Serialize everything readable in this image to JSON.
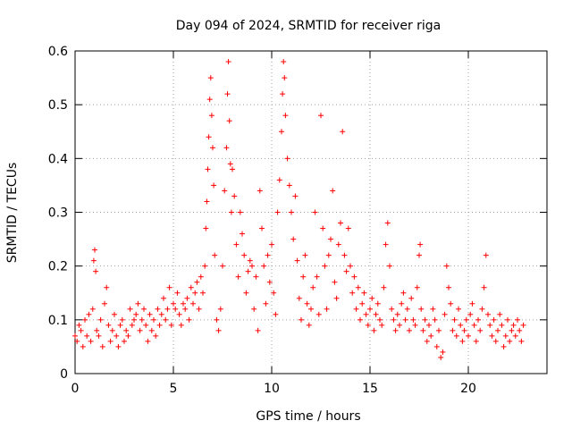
{
  "chart_data": {
    "type": "scatter",
    "title": "Day 094 of 2024, SRMTID for receiver riga",
    "xlabel": "GPS time / hours",
    "ylabel": "SRMTID / TECUs",
    "xlim": [
      0,
      24
    ],
    "ylim": [
      0,
      0.6
    ],
    "x_ticks": [
      0,
      5,
      10,
      15,
      20
    ],
    "x_tick_labels": [
      "0",
      "5",
      "10",
      "15",
      "20"
    ],
    "y_ticks": [
      0,
      0.1,
      0.2,
      0.3,
      0.4,
      0.5,
      0.6
    ],
    "y_tick_labels": [
      "0",
      "0.1",
      "0.2",
      "0.3",
      "0.4",
      "0.5",
      "0.6"
    ],
    "grid": true,
    "marker": "+",
    "series": [
      {
        "name": "SRMTID",
        "color": "#ff0000",
        "points": [
          [
            0.0,
            0.07
          ],
          [
            0.1,
            0.06
          ],
          [
            0.2,
            0.09
          ],
          [
            0.3,
            0.08
          ],
          [
            0.4,
            0.05
          ],
          [
            0.5,
            0.1
          ],
          [
            0.6,
            0.07
          ],
          [
            0.7,
            0.11
          ],
          [
            0.8,
            0.06
          ],
          [
            0.9,
            0.12
          ],
          [
            0.95,
            0.21
          ],
          [
            1.0,
            0.23
          ],
          [
            1.05,
            0.19
          ],
          [
            1.1,
            0.08
          ],
          [
            1.2,
            0.07
          ],
          [
            1.3,
            0.1
          ],
          [
            1.4,
            0.05
          ],
          [
            1.5,
            0.13
          ],
          [
            1.6,
            0.16
          ],
          [
            1.7,
            0.09
          ],
          [
            1.8,
            0.06
          ],
          [
            1.9,
            0.08
          ],
          [
            2.0,
            0.11
          ],
          [
            2.1,
            0.07
          ],
          [
            2.2,
            0.05
          ],
          [
            2.3,
            0.09
          ],
          [
            2.4,
            0.1
          ],
          [
            2.5,
            0.06
          ],
          [
            2.6,
            0.08
          ],
          [
            2.7,
            0.07
          ],
          [
            2.8,
            0.12
          ],
          [
            2.9,
            0.09
          ],
          [
            3.0,
            0.1
          ],
          [
            3.1,
            0.11
          ],
          [
            3.2,
            0.13
          ],
          [
            3.3,
            0.08
          ],
          [
            3.4,
            0.1
          ],
          [
            3.5,
            0.12
          ],
          [
            3.6,
            0.09
          ],
          [
            3.7,
            0.06
          ],
          [
            3.8,
            0.11
          ],
          [
            3.9,
            0.08
          ],
          [
            4.0,
            0.1
          ],
          [
            4.1,
            0.07
          ],
          [
            4.2,
            0.12
          ],
          [
            4.3,
            0.09
          ],
          [
            4.4,
            0.11
          ],
          [
            4.5,
            0.14
          ],
          [
            4.6,
            0.1
          ],
          [
            4.7,
            0.12
          ],
          [
            4.8,
            0.16
          ],
          [
            4.9,
            0.09
          ],
          [
            5.0,
            0.13
          ],
          [
            5.1,
            0.12
          ],
          [
            5.2,
            0.15
          ],
          [
            5.3,
            0.11
          ],
          [
            5.4,
            0.09
          ],
          [
            5.5,
            0.13
          ],
          [
            5.6,
            0.12
          ],
          [
            5.7,
            0.14
          ],
          [
            5.8,
            0.1
          ],
          [
            5.9,
            0.16
          ],
          [
            6.0,
            0.13
          ],
          [
            6.1,
            0.15
          ],
          [
            6.2,
            0.17
          ],
          [
            6.3,
            0.12
          ],
          [
            6.4,
            0.18
          ],
          [
            6.5,
            0.15
          ],
          [
            6.6,
            0.2
          ],
          [
            6.65,
            0.27
          ],
          [
            6.7,
            0.32
          ],
          [
            6.75,
            0.38
          ],
          [
            6.8,
            0.44
          ],
          [
            6.85,
            0.51
          ],
          [
            6.9,
            0.55
          ],
          [
            6.95,
            0.48
          ],
          [
            7.0,
            0.42
          ],
          [
            7.05,
            0.35
          ],
          [
            7.1,
            0.22
          ],
          [
            7.2,
            0.1
          ],
          [
            7.3,
            0.08
          ],
          [
            7.4,
            0.12
          ],
          [
            7.5,
            0.2
          ],
          [
            7.6,
            0.34
          ],
          [
            7.7,
            0.42
          ],
          [
            7.75,
            0.52
          ],
          [
            7.8,
            0.58
          ],
          [
            7.85,
            0.47
          ],
          [
            7.9,
            0.39
          ],
          [
            7.95,
            0.3
          ],
          [
            8.0,
            0.38
          ],
          [
            8.1,
            0.33
          ],
          [
            8.2,
            0.24
          ],
          [
            8.3,
            0.18
          ],
          [
            8.4,
            0.3
          ],
          [
            8.5,
            0.26
          ],
          [
            8.6,
            0.22
          ],
          [
            8.7,
            0.15
          ],
          [
            8.8,
            0.19
          ],
          [
            8.9,
            0.21
          ],
          [
            9.0,
            0.2
          ],
          [
            9.1,
            0.12
          ],
          [
            9.2,
            0.18
          ],
          [
            9.3,
            0.08
          ],
          [
            9.4,
            0.34
          ],
          [
            9.5,
            0.27
          ],
          [
            9.6,
            0.2
          ],
          [
            9.7,
            0.13
          ],
          [
            9.8,
            0.22
          ],
          [
            9.9,
            0.17
          ],
          [
            10.0,
            0.24
          ],
          [
            10.1,
            0.15
          ],
          [
            10.2,
            0.11
          ],
          [
            10.3,
            0.3
          ],
          [
            10.4,
            0.36
          ],
          [
            10.5,
            0.45
          ],
          [
            10.55,
            0.52
          ],
          [
            10.6,
            0.58
          ],
          [
            10.65,
            0.55
          ],
          [
            10.7,
            0.48
          ],
          [
            10.8,
            0.4
          ],
          [
            10.9,
            0.35
          ],
          [
            11.0,
            0.3
          ],
          [
            11.1,
            0.25
          ],
          [
            11.2,
            0.33
          ],
          [
            11.3,
            0.21
          ],
          [
            11.4,
            0.14
          ],
          [
            11.5,
            0.1
          ],
          [
            11.6,
            0.18
          ],
          [
            11.7,
            0.22
          ],
          [
            11.8,
            0.13
          ],
          [
            11.9,
            0.09
          ],
          [
            12.0,
            0.12
          ],
          [
            12.1,
            0.16
          ],
          [
            12.2,
            0.3
          ],
          [
            12.3,
            0.18
          ],
          [
            12.4,
            0.11
          ],
          [
            12.5,
            0.48
          ],
          [
            12.6,
            0.27
          ],
          [
            12.7,
            0.2
          ],
          [
            12.8,
            0.12
          ],
          [
            12.9,
            0.22
          ],
          [
            13.0,
            0.25
          ],
          [
            13.1,
            0.34
          ],
          [
            13.2,
            0.17
          ],
          [
            13.3,
            0.14
          ],
          [
            13.4,
            0.24
          ],
          [
            13.5,
            0.28
          ],
          [
            13.6,
            0.45
          ],
          [
            13.7,
            0.22
          ],
          [
            13.8,
            0.19
          ],
          [
            13.9,
            0.27
          ],
          [
            14.0,
            0.2
          ],
          [
            14.1,
            0.15
          ],
          [
            14.2,
            0.18
          ],
          [
            14.3,
            0.12
          ],
          [
            14.4,
            0.16
          ],
          [
            14.5,
            0.1
          ],
          [
            14.6,
            0.13
          ],
          [
            14.7,
            0.15
          ],
          [
            14.8,
            0.11
          ],
          [
            14.9,
            0.09
          ],
          [
            15.0,
            0.12
          ],
          [
            15.1,
            0.14
          ],
          [
            15.2,
            0.08
          ],
          [
            15.3,
            0.11
          ],
          [
            15.4,
            0.13
          ],
          [
            15.5,
            0.1
          ],
          [
            15.6,
            0.09
          ],
          [
            15.7,
            0.16
          ],
          [
            15.8,
            0.24
          ],
          [
            15.9,
            0.28
          ],
          [
            16.0,
            0.2
          ],
          [
            16.1,
            0.12
          ],
          [
            16.2,
            0.1
          ],
          [
            16.3,
            0.08
          ],
          [
            16.4,
            0.11
          ],
          [
            16.5,
            0.09
          ],
          [
            16.6,
            0.13
          ],
          [
            16.7,
            0.15
          ],
          [
            16.8,
            0.1
          ],
          [
            16.9,
            0.12
          ],
          [
            17.0,
            0.08
          ],
          [
            17.1,
            0.14
          ],
          [
            17.2,
            0.1
          ],
          [
            17.3,
            0.09
          ],
          [
            17.4,
            0.16
          ],
          [
            17.5,
            0.22
          ],
          [
            17.55,
            0.24
          ],
          [
            17.6,
            0.12
          ],
          [
            17.7,
            0.08
          ],
          [
            17.8,
            0.1
          ],
          [
            17.9,
            0.06
          ],
          [
            18.0,
            0.09
          ],
          [
            18.1,
            0.07
          ],
          [
            18.2,
            0.12
          ],
          [
            18.3,
            0.1
          ],
          [
            18.4,
            0.05
          ],
          [
            18.5,
            0.08
          ],
          [
            18.6,
            0.03
          ],
          [
            18.7,
            0.04
          ],
          [
            18.8,
            0.11
          ],
          [
            18.9,
            0.2
          ],
          [
            19.0,
            0.16
          ],
          [
            19.1,
            0.13
          ],
          [
            19.2,
            0.08
          ],
          [
            19.3,
            0.1
          ],
          [
            19.4,
            0.07
          ],
          [
            19.5,
            0.12
          ],
          [
            19.6,
            0.09
          ],
          [
            19.7,
            0.06
          ],
          [
            19.8,
            0.08
          ],
          [
            19.9,
            0.1
          ],
          [
            20.0,
            0.07
          ],
          [
            20.1,
            0.11
          ],
          [
            20.2,
            0.13
          ],
          [
            20.3,
            0.09
          ],
          [
            20.4,
            0.06
          ],
          [
            20.5,
            0.1
          ],
          [
            20.6,
            0.08
          ],
          [
            20.7,
            0.12
          ],
          [
            20.8,
            0.16
          ],
          [
            20.9,
            0.22
          ],
          [
            21.0,
            0.11
          ],
          [
            21.1,
            0.09
          ],
          [
            21.2,
            0.07
          ],
          [
            21.3,
            0.1
          ],
          [
            21.4,
            0.06
          ],
          [
            21.5,
            0.08
          ],
          [
            21.6,
            0.11
          ],
          [
            21.7,
            0.09
          ],
          [
            21.8,
            0.05
          ],
          [
            21.9,
            0.07
          ],
          [
            22.0,
            0.1
          ],
          [
            22.1,
            0.06
          ],
          [
            22.2,
            0.08
          ],
          [
            22.3,
            0.09
          ],
          [
            22.4,
            0.07
          ],
          [
            22.5,
            0.1
          ],
          [
            22.6,
            0.08
          ],
          [
            22.7,
            0.06
          ],
          [
            22.8,
            0.09
          ]
        ]
      }
    ]
  }
}
